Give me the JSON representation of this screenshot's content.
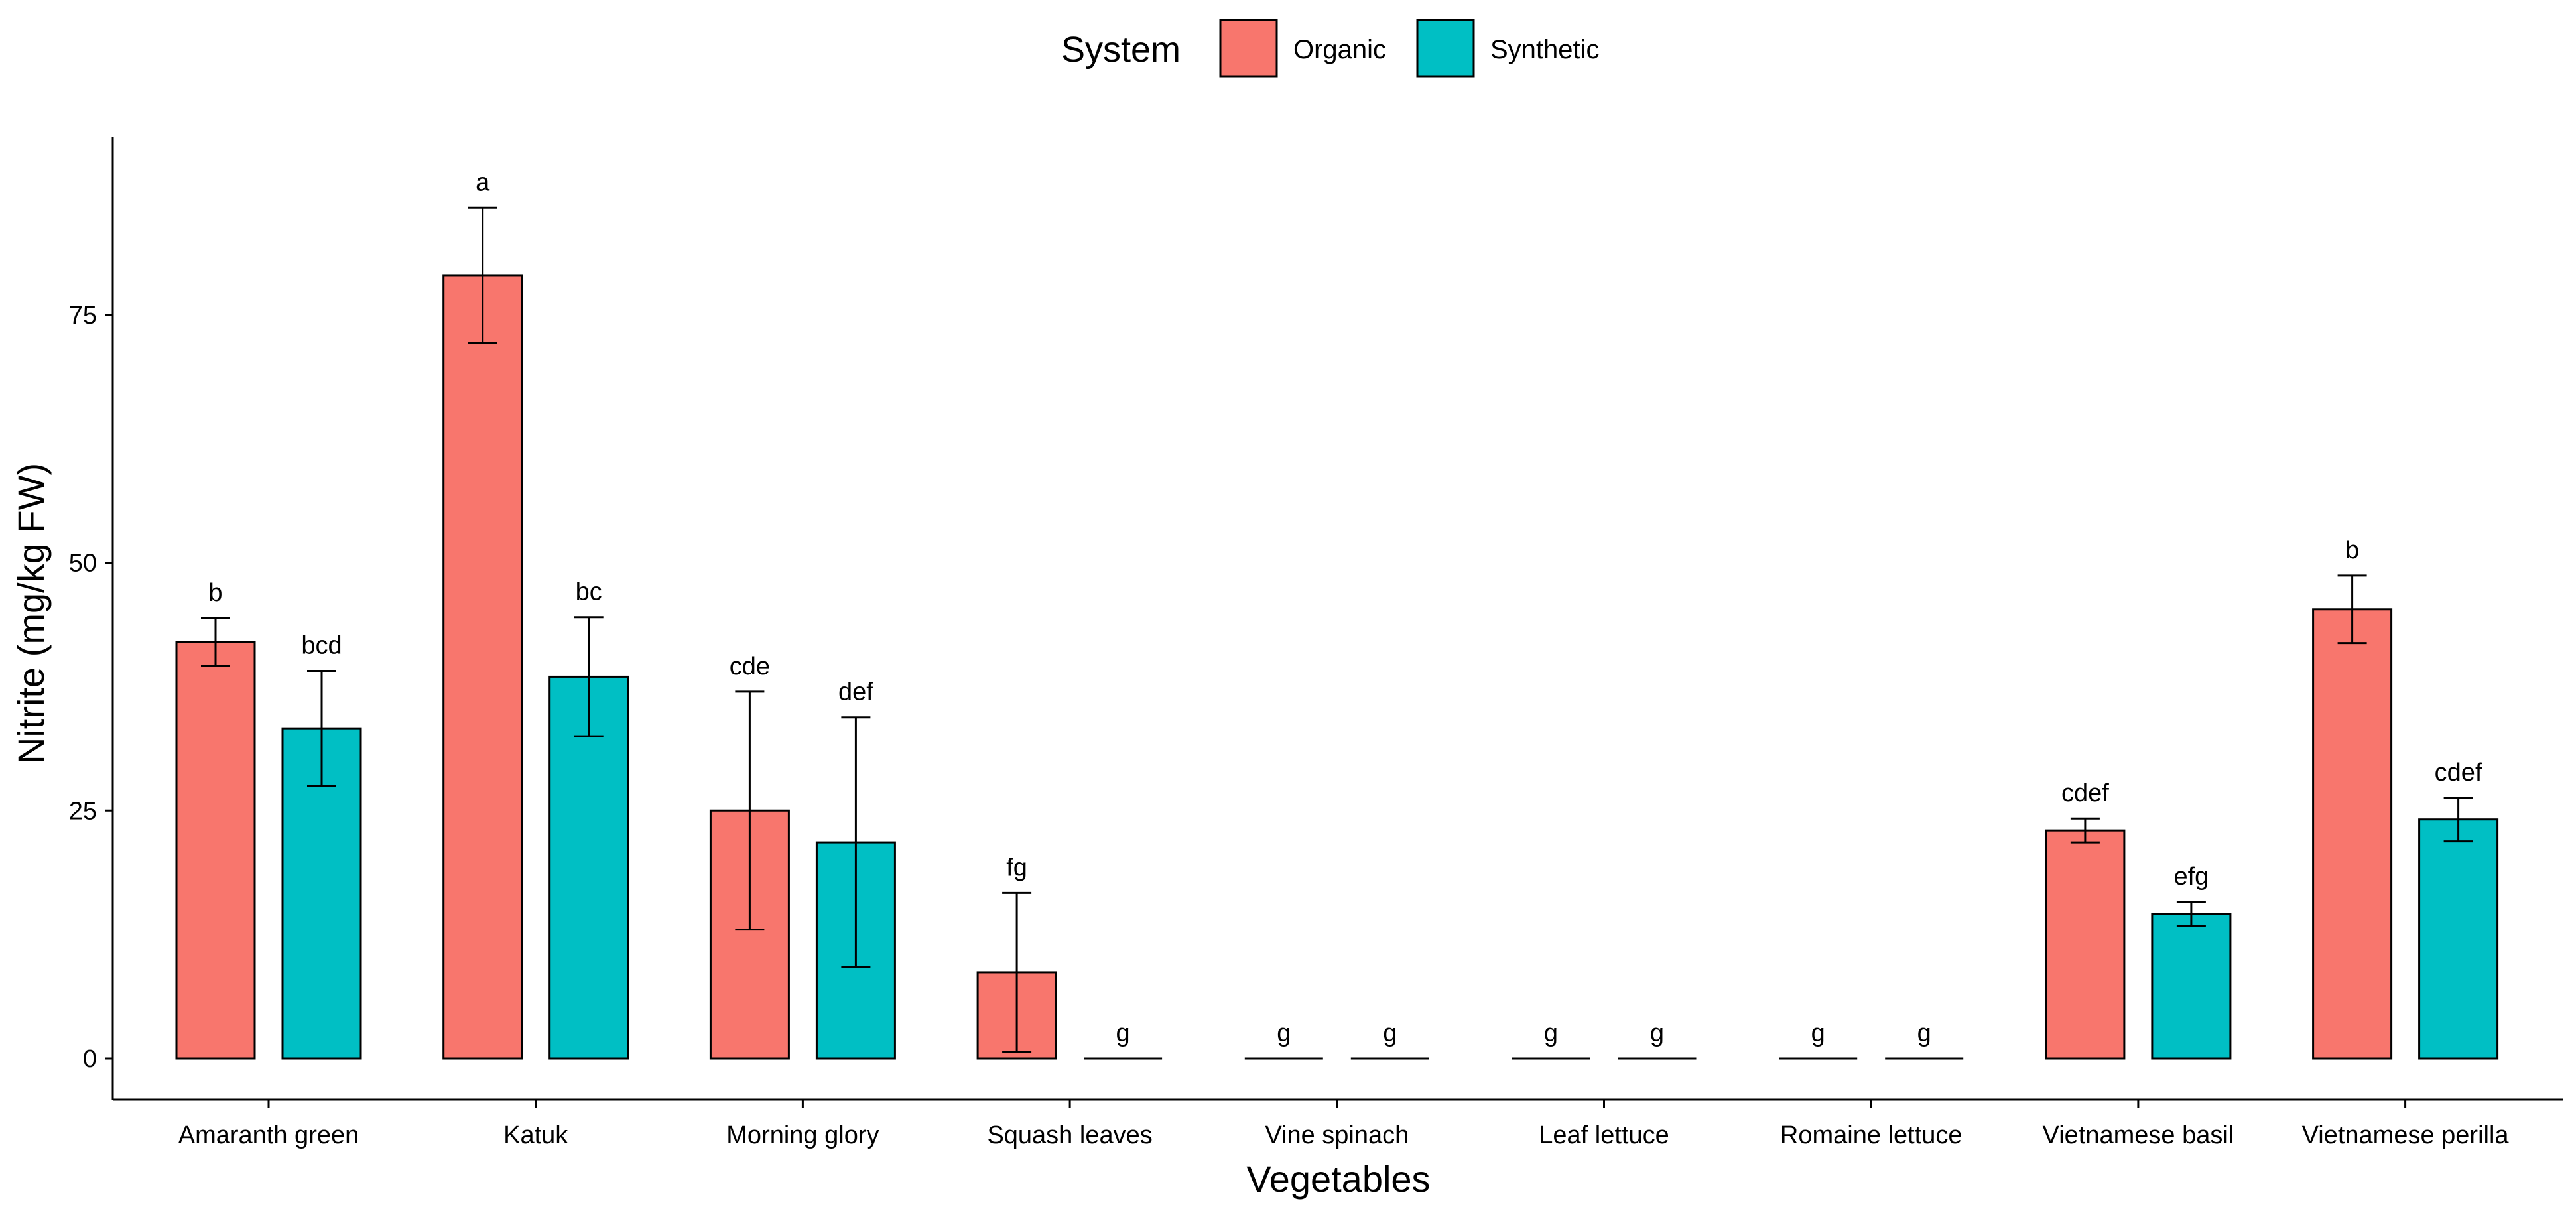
{
  "colors": {
    "organic": "#F8766D",
    "synthetic": "#00BFC4",
    "axis": "#000000"
  },
  "legend": {
    "title": "System",
    "items": [
      "Organic",
      "Synthetic"
    ]
  },
  "chart_data": {
    "type": "bar",
    "title": "",
    "xlabel": "Vegetables",
    "ylabel": "Nitrite (mg/kg FW)",
    "ylim": [
      0,
      92
    ],
    "yticks": [
      0,
      25,
      50,
      75
    ],
    "grid": false,
    "legend_position": "top",
    "categories": [
      "Amaranth green",
      "Katuk",
      "Morning glory",
      "Squash leaves",
      "Vine spinach",
      "Leaf lettuce",
      "Romaine lettuce",
      "Vietnamese basil",
      "Vietnamese perilla"
    ],
    "series": [
      {
        "name": "Organic",
        "values": [
          42.0,
          79.0,
          25.0,
          8.7,
          0,
          0,
          0,
          23.0,
          45.3
        ],
        "errors": [
          2.4,
          6.8,
          12.0,
          8.0,
          0,
          0,
          0,
          1.2,
          3.4
        ],
        "letters": [
          "b",
          "a",
          "cde",
          "fg",
          "g",
          "g",
          "g",
          "cdef",
          "b"
        ]
      },
      {
        "name": "Synthetic",
        "values": [
          33.3,
          38.5,
          21.8,
          0,
          0,
          0,
          0,
          14.6,
          24.1
        ],
        "errors": [
          5.8,
          6.0,
          12.6,
          0,
          0,
          0,
          0,
          1.2,
          2.2
        ],
        "letters": [
          "bcd",
          "bc",
          "def",
          "g",
          "g",
          "g",
          "g",
          "efg",
          "cdef"
        ]
      }
    ]
  }
}
